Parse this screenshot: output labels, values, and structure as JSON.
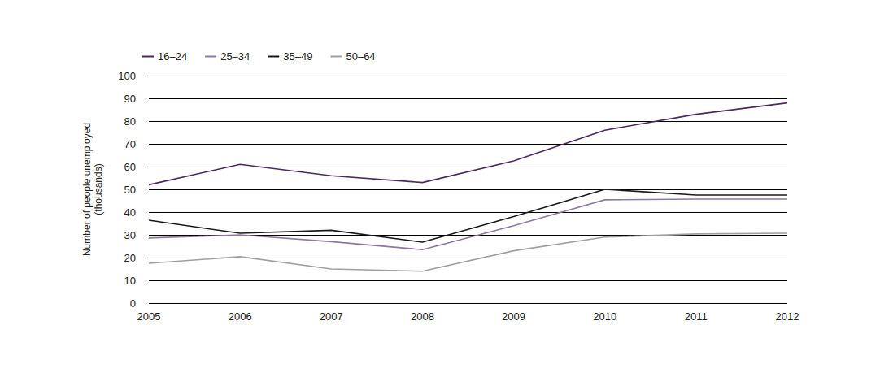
{
  "chart_data": {
    "type": "line",
    "y_label": "Number of people unemployed\n(thousands)",
    "categories": [
      "2005",
      "2006",
      "2007",
      "2008",
      "2009",
      "2010",
      "2011",
      "2012"
    ],
    "series": [
      {
        "name": "16–24",
        "color": "#4b2a5e",
        "values": [
          52,
          61,
          56,
          53,
          62.5,
          76,
          83,
          88
        ]
      },
      {
        "name": "25–34",
        "color": "#8e7aa0",
        "values": [
          28.6,
          30,
          27,
          23.5,
          34,
          45.4,
          45.7,
          45.7
        ]
      },
      {
        "name": "35–49",
        "color": "#1a1a1a",
        "values": [
          36.4,
          30.7,
          32,
          26.8,
          38,
          50,
          47.5,
          47.5
        ]
      },
      {
        "name": "50–64",
        "color": "#a0a0a0",
        "values": [
          17.5,
          20.4,
          15,
          14,
          23,
          29,
          30.4,
          30.7
        ]
      }
    ],
    "ylim": [
      0,
      100
    ],
    "yticks": [
      0,
      10,
      20,
      30,
      40,
      50,
      60,
      70,
      80,
      90,
      100
    ],
    "grid": true,
    "legend": "top-left",
    "marker": "none"
  }
}
